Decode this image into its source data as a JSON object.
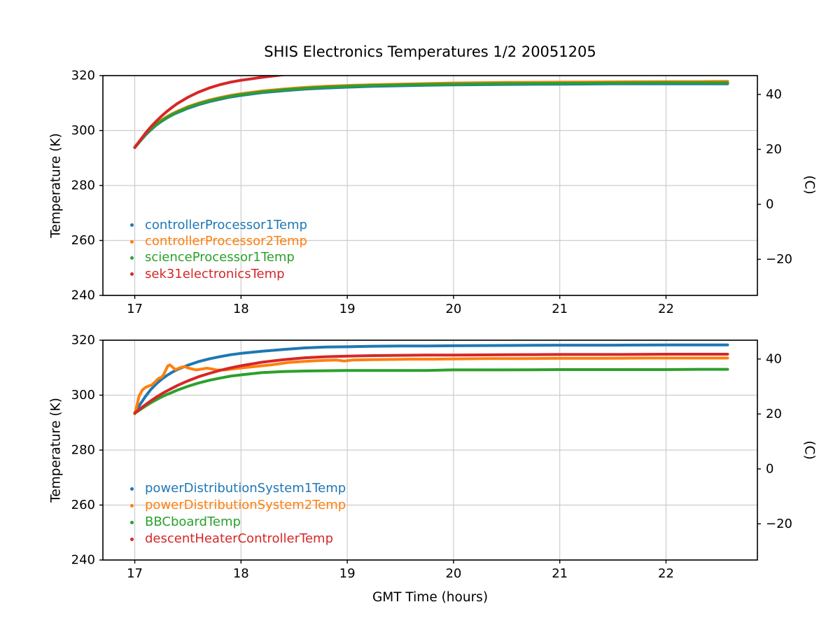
{
  "figure": {
    "title": "SHIS Electronics Temperatures 1/2 20051205",
    "xlabel": "GMT Time (hours)"
  },
  "style": {
    "grid_color": "#cccccc",
    "spine_color": "#000000",
    "background": "#ffffff",
    "line_width": 4
  },
  "chart_data": [
    {
      "type": "line",
      "position": "top",
      "ylabel_left": "Temperature (K)",
      "ylabel_right": "(C)",
      "xlim": [
        16.7,
        22.86
      ],
      "ylim_K": [
        240,
        320
      ],
      "xticks": [
        17,
        18,
        19,
        20,
        21,
        22
      ],
      "yticks_K": [
        240,
        260,
        280,
        300,
        320
      ],
      "yticks_C": [
        -20,
        0,
        20,
        40
      ],
      "celsius_offset": 273.15,
      "grid": true,
      "legend_position": "lower-left",
      "series": [
        {
          "name": "controllerProcessor1Temp",
          "color": "#1f77b4",
          "x": [
            17.0,
            17.05,
            17.1,
            17.15,
            17.2,
            17.25,
            17.3,
            17.35,
            17.4,
            17.5,
            17.6,
            17.7,
            17.8,
            17.9,
            18.0,
            18.2,
            18.4,
            18.6,
            18.8,
            19.0,
            19.25,
            19.5,
            19.75,
            20.0,
            20.5,
            21.0,
            21.5,
            22.0,
            22.3,
            22.58
          ],
          "y": [
            293.8,
            296.1,
            298.3,
            300.2,
            301.9,
            303.3,
            304.5,
            305.6,
            306.5,
            308.1,
            309.4,
            310.5,
            311.4,
            312.2,
            312.8,
            313.8,
            314.5,
            315.1,
            315.5,
            315.8,
            316.1,
            316.3,
            316.5,
            316.6,
            316.8,
            316.9,
            317.0,
            317.0,
            317.0,
            317.0
          ]
        },
        {
          "name": "controllerProcessor2Temp",
          "color": "#ff7f0e",
          "x": [
            17.0,
            17.05,
            17.1,
            17.15,
            17.2,
            17.25,
            17.3,
            17.35,
            17.4,
            17.5,
            17.6,
            17.7,
            17.8,
            17.9,
            18.0,
            18.2,
            18.4,
            18.6,
            18.8,
            19.0,
            19.25,
            19.5,
            19.75,
            20.0,
            20.5,
            21.0,
            21.5,
            22.0,
            22.3,
            22.58
          ],
          "y": [
            294.0,
            296.4,
            298.7,
            300.6,
            302.3,
            303.8,
            305.0,
            306.1,
            307.0,
            308.7,
            310.0,
            311.1,
            312.0,
            312.8,
            313.4,
            314.4,
            315.1,
            315.7,
            316.1,
            316.4,
            316.7,
            316.9,
            317.1,
            317.3,
            317.5,
            317.6,
            317.7,
            317.8,
            317.8,
            317.9
          ]
        },
        {
          "name": "scienceProcessor1Temp",
          "color": "#2ca02c",
          "x": [
            17.0,
            17.05,
            17.1,
            17.15,
            17.2,
            17.25,
            17.3,
            17.35,
            17.4,
            17.5,
            17.6,
            17.7,
            17.8,
            17.9,
            18.0,
            18.2,
            18.4,
            18.6,
            18.8,
            19.0,
            19.25,
            19.5,
            19.75,
            20.0,
            20.5,
            21.0,
            21.5,
            22.0,
            22.3,
            22.58
          ],
          "y": [
            293.9,
            296.2,
            298.5,
            300.4,
            302.1,
            303.5,
            304.7,
            305.8,
            306.7,
            308.4,
            309.7,
            310.8,
            311.7,
            312.5,
            313.1,
            314.1,
            314.8,
            315.4,
            315.8,
            316.1,
            316.4,
            316.6,
            316.8,
            316.9,
            317.1,
            317.2,
            317.3,
            317.4,
            317.4,
            317.4
          ]
        },
        {
          "name": "sek31electronicsTemp",
          "color": "#d62728",
          "x": [
            17.0,
            17.05,
            17.1,
            17.15,
            17.2,
            17.25,
            17.3,
            17.35,
            17.4,
            17.5,
            17.6,
            17.7,
            17.8,
            17.9,
            18.0,
            18.2,
            18.4,
            18.6,
            18.8,
            19.0,
            19.25,
            19.5,
            19.75,
            20.0,
            20.5,
            21.0,
            21.5,
            22.0,
            22.3,
            22.58
          ],
          "y": [
            293.8,
            296.4,
            299.0,
            301.3,
            303.3,
            305.2,
            306.9,
            308.4,
            309.8,
            312.1,
            314.0,
            315.5,
            316.7,
            317.6,
            318.3,
            319.4,
            320.3,
            321.0,
            321.6,
            322.0,
            322.5,
            322.8,
            323.1,
            323.3,
            323.6,
            323.8,
            323.9,
            324.0,
            324.0,
            324.1
          ]
        }
      ]
    },
    {
      "type": "line",
      "position": "bottom",
      "ylabel_left": "Temperature (K)",
      "ylabel_right": "(C)",
      "xlim": [
        16.7,
        22.86
      ],
      "ylim_K": [
        240,
        320
      ],
      "xticks": [
        17,
        18,
        19,
        20,
        21,
        22
      ],
      "yticks_K": [
        240,
        260,
        280,
        300,
        320
      ],
      "yticks_C": [
        -20,
        0,
        20,
        40
      ],
      "celsius_offset": 273.15,
      "grid": true,
      "legend_position": "lower-left",
      "series": [
        {
          "name": "powerDistributionSystem1Temp",
          "color": "#1f77b4",
          "x": [
            17.0,
            17.05,
            17.1,
            17.15,
            17.2,
            17.25,
            17.3,
            17.35,
            17.4,
            17.5,
            17.6,
            17.7,
            17.8,
            17.9,
            18.0,
            18.2,
            18.4,
            18.6,
            18.8,
            19.0,
            19.25,
            19.5,
            19.75,
            20.0,
            20.5,
            21.0,
            21.5,
            22.0,
            22.3,
            22.58
          ],
          "y": [
            293.5,
            296.6,
            299.5,
            302.0,
            304.0,
            305.7,
            307.1,
            308.3,
            309.3,
            310.9,
            312.2,
            313.2,
            314.0,
            314.7,
            315.2,
            316.0,
            316.6,
            317.2,
            317.5,
            317.6,
            317.8,
            317.9,
            317.9,
            318.0,
            318.1,
            318.2,
            318.2,
            318.3,
            318.3,
            318.3
          ]
        },
        {
          "name": "powerDistributionSystem2Temp",
          "color": "#ff7f0e",
          "x": [
            17.0,
            17.02,
            17.04,
            17.07,
            17.1,
            17.13,
            17.16,
            17.19,
            17.22,
            17.25,
            17.27,
            17.29,
            17.31,
            17.33,
            17.35,
            17.38,
            17.41,
            17.44,
            17.47,
            17.5,
            17.54,
            17.58,
            17.63,
            17.68,
            17.73,
            17.78,
            17.85,
            17.92,
            18.0,
            18.1,
            18.2,
            18.3,
            18.45,
            18.6,
            18.75,
            18.9,
            18.97,
            19.05,
            19.2,
            19.4,
            19.6,
            19.8,
            20.0,
            20.3,
            20.6,
            21.0,
            21.4,
            21.8,
            22.2,
            22.58
          ],
          "y": [
            293.2,
            296.2,
            299.6,
            301.8,
            302.8,
            303.3,
            303.7,
            304.8,
            306.0,
            306.5,
            307.3,
            309.0,
            310.6,
            311.0,
            310.4,
            309.3,
            309.7,
            310.2,
            310.4,
            309.9,
            309.5,
            309.2,
            309.5,
            309.8,
            309.5,
            309.1,
            309.2,
            309.5,
            309.9,
            310.3,
            310.7,
            311.1,
            311.9,
            312.3,
            312.6,
            312.8,
            312.4,
            312.8,
            312.9,
            313.0,
            313.1,
            313.1,
            313.2,
            313.3,
            313.3,
            313.4,
            313.4,
            313.5,
            313.5,
            313.5
          ]
        },
        {
          "name": "BBCboardTemp",
          "color": "#2ca02c",
          "x": [
            17.0,
            17.05,
            17.1,
            17.15,
            17.2,
            17.25,
            17.3,
            17.35,
            17.4,
            17.5,
            17.6,
            17.7,
            17.8,
            17.9,
            18.0,
            18.2,
            18.4,
            18.6,
            18.8,
            19.0,
            19.25,
            19.5,
            19.75,
            20.0,
            20.5,
            21.0,
            21.5,
            22.0,
            22.3,
            22.58
          ],
          "y": [
            293.4,
            294.7,
            296.0,
            297.2,
            298.3,
            299.3,
            300.2,
            301.0,
            301.8,
            303.2,
            304.4,
            305.4,
            306.2,
            306.9,
            307.4,
            308.2,
            308.6,
            308.8,
            308.9,
            309.0,
            309.0,
            309.0,
            309.0,
            309.2,
            309.2,
            309.3,
            309.3,
            309.3,
            309.4,
            309.4
          ]
        },
        {
          "name": "descentHeaterControllerTemp",
          "color": "#d62728",
          "x": [
            17.0,
            17.05,
            17.1,
            17.15,
            17.2,
            17.25,
            17.3,
            17.35,
            17.4,
            17.5,
            17.6,
            17.7,
            17.8,
            17.9,
            18.0,
            18.2,
            18.4,
            18.6,
            18.8,
            19.0,
            19.25,
            19.5,
            19.75,
            20.0,
            20.5,
            21.0,
            21.5,
            22.0,
            22.3,
            22.58
          ],
          "y": [
            293.5,
            295.0,
            296.5,
            297.9,
            299.2,
            300.4,
            301.5,
            302.5,
            303.5,
            305.2,
            306.7,
            307.9,
            309.0,
            309.9,
            310.7,
            312.0,
            312.9,
            313.6,
            314.0,
            314.2,
            314.4,
            314.5,
            314.6,
            314.6,
            314.7,
            314.8,
            314.8,
            314.9,
            314.9,
            314.9
          ]
        }
      ]
    }
  ]
}
